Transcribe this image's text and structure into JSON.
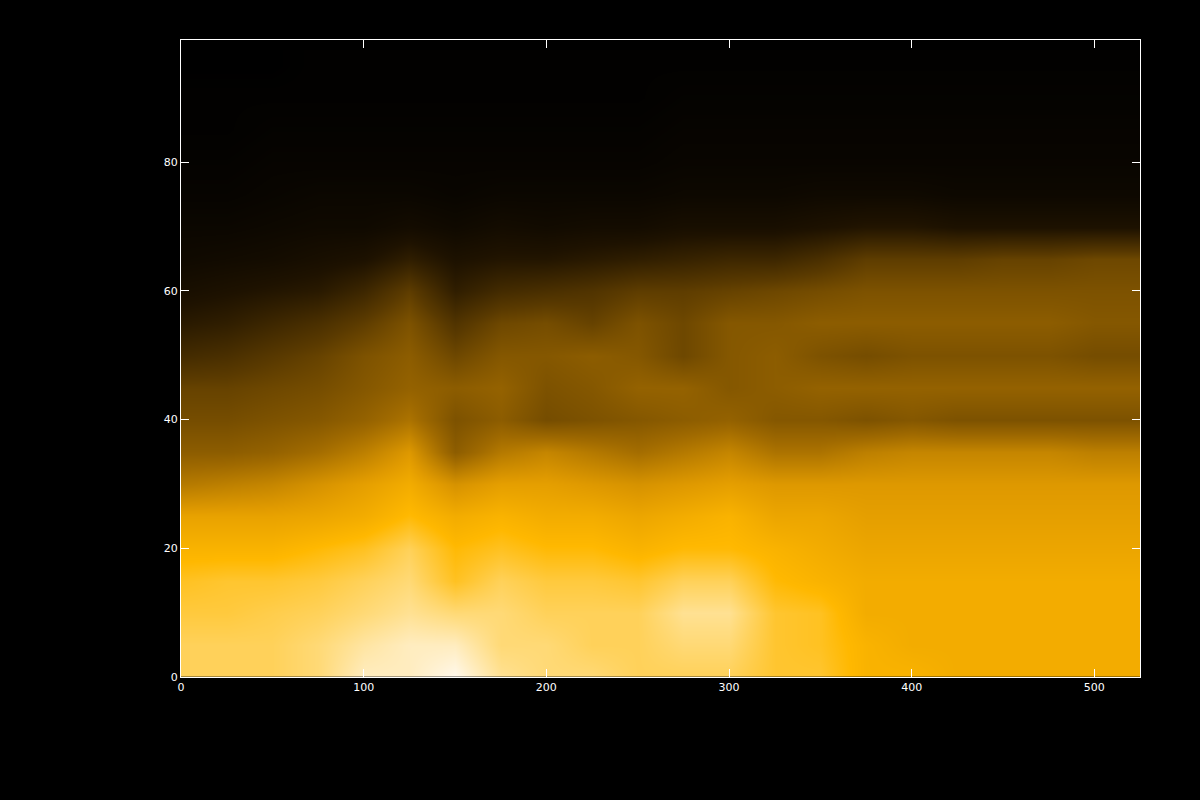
{
  "chart_data": {
    "type": "heatmap",
    "x": [
      0,
      25,
      50,
      75,
      100,
      125,
      150,
      175,
      200,
      225,
      250,
      275,
      300,
      325,
      350,
      375,
      400,
      425,
      450,
      475,
      500,
      525
    ],
    "y": [
      0,
      5,
      10,
      15,
      20,
      25,
      30,
      35,
      40,
      45,
      50,
      55,
      60,
      65,
      70,
      75,
      80,
      85,
      90,
      95
    ],
    "cells": [
      [
        88,
        88,
        88,
        90,
        95,
        95,
        98,
        92,
        90,
        90,
        88,
        88,
        88,
        85,
        85,
        80,
        80,
        78,
        78,
        78,
        78,
        78
      ],
      [
        88,
        88,
        88,
        90,
        93,
        95,
        95,
        90,
        90,
        88,
        88,
        90,
        90,
        85,
        84,
        80,
        78,
        78,
        78,
        78,
        78,
        78
      ],
      [
        86,
        86,
        87,
        88,
        90,
        92,
        90,
        90,
        88,
        88,
        88,
        92,
        92,
        85,
        84,
        78,
        78,
        78,
        78,
        78,
        78,
        78
      ],
      [
        84,
        85,
        85,
        86,
        88,
        90,
        84,
        88,
        86,
        86,
        85,
        88,
        88,
        82,
        80,
        78,
        78,
        78,
        78,
        78,
        78,
        78
      ],
      [
        80,
        80,
        80,
        82,
        84,
        88,
        82,
        84,
        82,
        82,
        80,
        82,
        82,
        80,
        78,
        76,
        76,
        76,
        76,
        76,
        76,
        76
      ],
      [
        75,
        75,
        75,
        76,
        78,
        82,
        78,
        80,
        78,
        78,
        76,
        78,
        80,
        76,
        76,
        74,
        74,
        74,
        74,
        74,
        74,
        74
      ],
      [
        62,
        64,
        66,
        70,
        74,
        78,
        70,
        74,
        74,
        72,
        70,
        72,
        74,
        72,
        72,
        72,
        72,
        72,
        72,
        72,
        72,
        72
      ],
      [
        52,
        52,
        54,
        58,
        64,
        72,
        52,
        62,
        66,
        62,
        58,
        62,
        66,
        60,
        60,
        64,
        66,
        66,
        66,
        66,
        64,
        64
      ],
      [
        46,
        46,
        48,
        50,
        54,
        60,
        48,
        52,
        46,
        48,
        50,
        52,
        54,
        50,
        50,
        48,
        50,
        48,
        48,
        48,
        48,
        48
      ],
      [
        42,
        42,
        44,
        46,
        50,
        54,
        52,
        54,
        48,
        50,
        54,
        54,
        50,
        52,
        54,
        54,
        54,
        54,
        54,
        54,
        54,
        54
      ],
      [
        32,
        34,
        38,
        42,
        48,
        52,
        44,
        50,
        50,
        52,
        50,
        44,
        50,
        52,
        48,
        46,
        48,
        48,
        48,
        48,
        46,
        46
      ],
      [
        24,
        26,
        30,
        34,
        40,
        48,
        36,
        44,
        46,
        42,
        48,
        44,
        50,
        50,
        52,
        52,
        52,
        52,
        52,
        52,
        50,
        50
      ],
      [
        18,
        20,
        22,
        24,
        30,
        40,
        26,
        32,
        34,
        36,
        40,
        40,
        42,
        44,
        46,
        48,
        48,
        48,
        48,
        48,
        48,
        48
      ],
      [
        14,
        15,
        16,
        18,
        20,
        26,
        20,
        22,
        22,
        24,
        26,
        28,
        30,
        30,
        34,
        40,
        40,
        40,
        42,
        42,
        44,
        44
      ],
      [
        12,
        12,
        13,
        14,
        14,
        16,
        14,
        16,
        15,
        16,
        16,
        18,
        18,
        18,
        20,
        22,
        22,
        20,
        20,
        20,
        20,
        20
      ],
      [
        10,
        10,
        11,
        12,
        12,
        12,
        11,
        12,
        12,
        12,
        12,
        13,
        13,
        13,
        14,
        14,
        14,
        13,
        13,
        13,
        13,
        13
      ],
      [
        9,
        9,
        10,
        10,
        10,
        10,
        10,
        10,
        10,
        10,
        10,
        11,
        11,
        11,
        11,
        11,
        11,
        11,
        11,
        11,
        11,
        11
      ],
      [
        8,
        8,
        9,
        9,
        9,
        9,
        9,
        9,
        9,
        9,
        9,
        10,
        10,
        10,
        10,
        10,
        10,
        10,
        10,
        10,
        10,
        10
      ],
      [
        8,
        8,
        8,
        8,
        8,
        8,
        8,
        8,
        8,
        8,
        8,
        9,
        9,
        9,
        9,
        9,
        9,
        9,
        9,
        9,
        9,
        9
      ],
      [
        7,
        7,
        7,
        8,
        8,
        8,
        8,
        8,
        8,
        8,
        8,
        8,
        8,
        8,
        8,
        8,
        8,
        8,
        8,
        8,
        8,
        8
      ]
    ],
    "xlim": [
      0,
      525
    ],
    "xticks": [
      0,
      100,
      200,
      300,
      400,
      500
    ],
    "ylim": [
      0,
      99
    ],
    "yticks": [
      0,
      20,
      40,
      60,
      80
    ],
    "grid": false
  }
}
